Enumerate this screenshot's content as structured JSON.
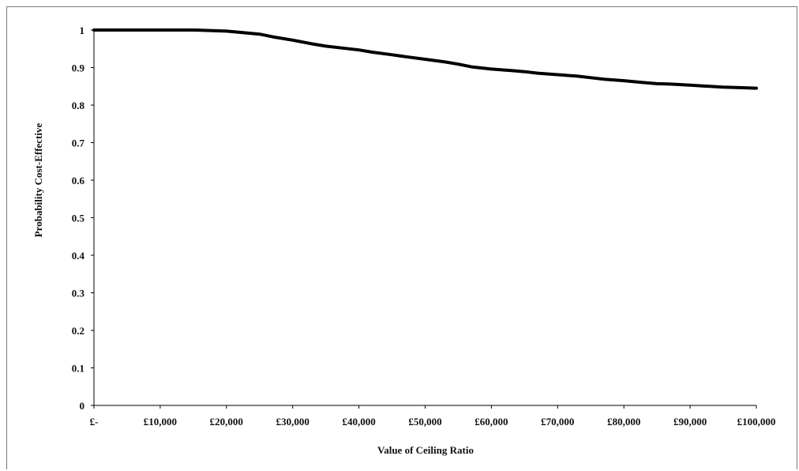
{
  "chart_data": {
    "type": "line",
    "title": "",
    "xlabel": "Value of Ceiling Ratio",
    "ylabel": "Probability Cost-Effective",
    "xlim": [
      0,
      100000
    ],
    "ylim": [
      0,
      1
    ],
    "x_tick_labels": [
      "£-",
      "£10,000",
      "£20,000",
      "£30,000",
      "£40,000",
      "£50,000",
      "£60,000",
      "£70,000",
      "£80,000",
      "£90,000",
      "£100,000"
    ],
    "x_ticks": [
      0,
      10000,
      20000,
      30000,
      40000,
      50000,
      60000,
      70000,
      80000,
      90000,
      100000
    ],
    "y_tick_labels": [
      "0",
      "0.1",
      "0.2",
      "0.3",
      "0.4",
      "0.5",
      "0.6",
      "0.7",
      "0.8",
      "0.9",
      "1"
    ],
    "y_ticks": [
      0,
      0.1,
      0.2,
      0.3,
      0.4,
      0.5,
      0.6,
      0.7,
      0.8,
      0.9,
      1
    ],
    "grid": false,
    "series": [
      {
        "x": [
          0,
          5000,
          10000,
          15000,
          17000,
          20000,
          22000,
          25000,
          27000,
          30000,
          33000,
          35000,
          37000,
          40000,
          42000,
          45000,
          47000,
          50000,
          53000,
          55000,
          57000,
          60000,
          63000,
          65000,
          67000,
          70000,
          73000,
          75000,
          77000,
          80000,
          83000,
          85000,
          87000,
          90000,
          93000,
          95000,
          97000,
          100000
        ],
        "y": [
          1,
          1,
          1,
          1,
          0.999,
          0.997,
          0.994,
          0.989,
          0.982,
          0.973,
          0.963,
          0.957,
          0.953,
          0.947,
          0.941,
          0.934,
          0.929,
          0.922,
          0.915,
          0.909,
          0.902,
          0.896,
          0.892,
          0.889,
          0.885,
          0.881,
          0.877,
          0.873,
          0.869,
          0.865,
          0.86,
          0.857,
          0.856,
          0.853,
          0.85,
          0.848,
          0.847,
          0.845
        ],
        "color": "#000000"
      }
    ]
  }
}
